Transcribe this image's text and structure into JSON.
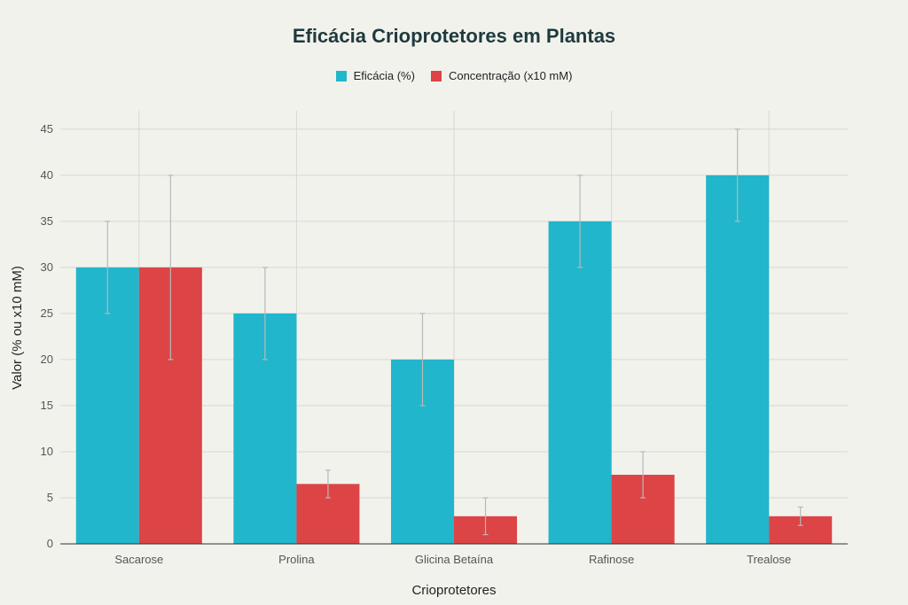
{
  "colors": {
    "eficacia": "#21b6cb",
    "concentracao": "#dc4446",
    "grid": "#d7d8d3",
    "axis": "#333333",
    "error": "#b8b8b8"
  },
  "chart_data": {
    "type": "bar",
    "title": "Eficácia Crioprotetores em Plantas",
    "xlabel": "Crioprotetores",
    "ylabel": "Valor (% ou x10 mM)",
    "categories": [
      "Sacarose",
      "Prolina",
      "Glicina Betaína",
      "Rafinose",
      "Trealose"
    ],
    "ylim": [
      0,
      47
    ],
    "yticks": [
      0,
      5,
      10,
      15,
      20,
      25,
      30,
      35,
      40,
      45
    ],
    "grid": true,
    "legend_position": "top-center",
    "series": [
      {
        "name": "Eficácia (%)",
        "values": [
          30,
          25,
          20,
          35,
          40
        ],
        "error": [
          5,
          5,
          5,
          5,
          5
        ]
      },
      {
        "name": "Concentração (x10 mM)",
        "values": [
          30,
          6.5,
          3,
          7.5,
          3
        ],
        "error": [
          10,
          1.5,
          2,
          2.5,
          1
        ]
      }
    ]
  }
}
